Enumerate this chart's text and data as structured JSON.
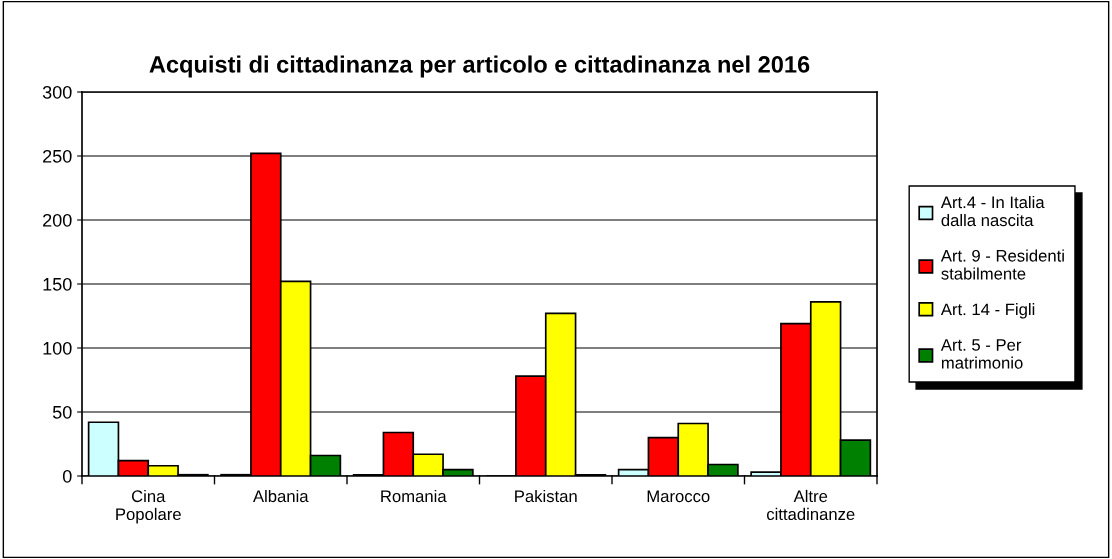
{
  "chart_data": {
    "type": "bar",
    "title": "Acquisti di cittadinanza per articolo e cittadinanza nel 2016",
    "categories": [
      "Cina\nPopolare",
      "Albania",
      "Romania",
      "Pakistan",
      "Marocco",
      "Altre\ncittadinanze"
    ],
    "series": [
      {
        "name": "Art.4 - In Italia\ndalla nascita",
        "color": "#ccffff",
        "values": [
          42,
          1,
          1,
          0,
          5,
          3
        ]
      },
      {
        "name": "Art. 9 - Residenti\nstabilmente",
        "color": "#ff0000",
        "values": [
          12,
          252,
          34,
          78,
          30,
          119
        ]
      },
      {
        "name": "Art. 14 - Figli",
        "color": "#ffff00",
        "values": [
          8,
          152,
          17,
          127,
          41,
          136
        ]
      },
      {
        "name": "Art. 5 - Per\nmatrimonio",
        "color": "#008000",
        "values": [
          1,
          16,
          5,
          1,
          9,
          28
        ]
      }
    ],
    "ylim": [
      0,
      300
    ],
    "yticks": [
      0,
      50,
      100,
      150,
      200,
      250,
      300
    ],
    "grid": "y",
    "legend": "right"
  }
}
